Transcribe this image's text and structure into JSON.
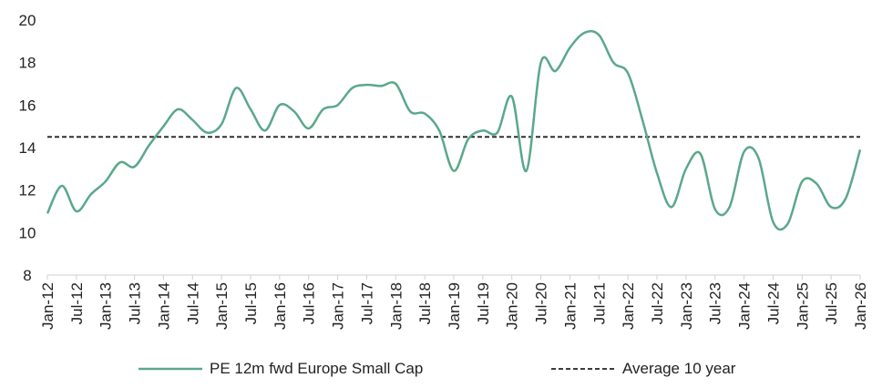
{
  "chart_data": {
    "type": "line",
    "categories": [
      "Jan-12",
      null,
      "Jul-12",
      null,
      "Jan-13",
      null,
      "Jul-13",
      null,
      "Jan-14",
      null,
      "Jul-14",
      null,
      "Jan-15",
      null,
      "Jul-15",
      null,
      "Jan-16",
      null,
      "Jul-16",
      null,
      "Jan-17",
      null,
      "Jul-17",
      null,
      "Jan-18",
      null,
      "Jul-18",
      null,
      "Jan-19",
      null,
      "Jul-19",
      null,
      "Jan-20",
      null,
      "Jul-20",
      null,
      "Jan-21",
      null,
      "Jul-21",
      null,
      "Jan-22",
      null,
      "Jul-22",
      null,
      "Jan-23",
      null,
      "Jul-23",
      null,
      "Jan-24",
      null,
      "Jul-24",
      null,
      "Jan-25",
      null,
      "Jul-25",
      null,
      "Jan-26"
    ],
    "series": [
      {
        "name": "PE 12m fwd Europe Small Cap",
        "color": "#5aa88a",
        "values": [
          10.9,
          12.2,
          11.0,
          11.8,
          12.4,
          13.3,
          13.1,
          14.1,
          15.0,
          15.8,
          15.3,
          14.7,
          15.1,
          16.8,
          15.8,
          14.8,
          16.0,
          15.7,
          14.9,
          15.8,
          16.0,
          16.8,
          16.95,
          16.9,
          17.0,
          15.7,
          15.6,
          14.8,
          12.9,
          14.4,
          14.8,
          14.7,
          16.4,
          12.9,
          18.0,
          17.6,
          18.7,
          19.4,
          19.3,
          18.0,
          17.5,
          15.3,
          12.8,
          11.2,
          13.0,
          13.7,
          11.1,
          11.2,
          13.8,
          13.5,
          10.5,
          10.4,
          12.4,
          12.3,
          11.2,
          11.6,
          13.9
        ]
      }
    ],
    "reference_line": {
      "name": "Average 10 year",
      "value": 14.5,
      "color": "#222222"
    },
    "ylim": [
      8,
      20
    ],
    "yticks": [
      8,
      10,
      12,
      14,
      16,
      18,
      20
    ],
    "grid": false
  }
}
